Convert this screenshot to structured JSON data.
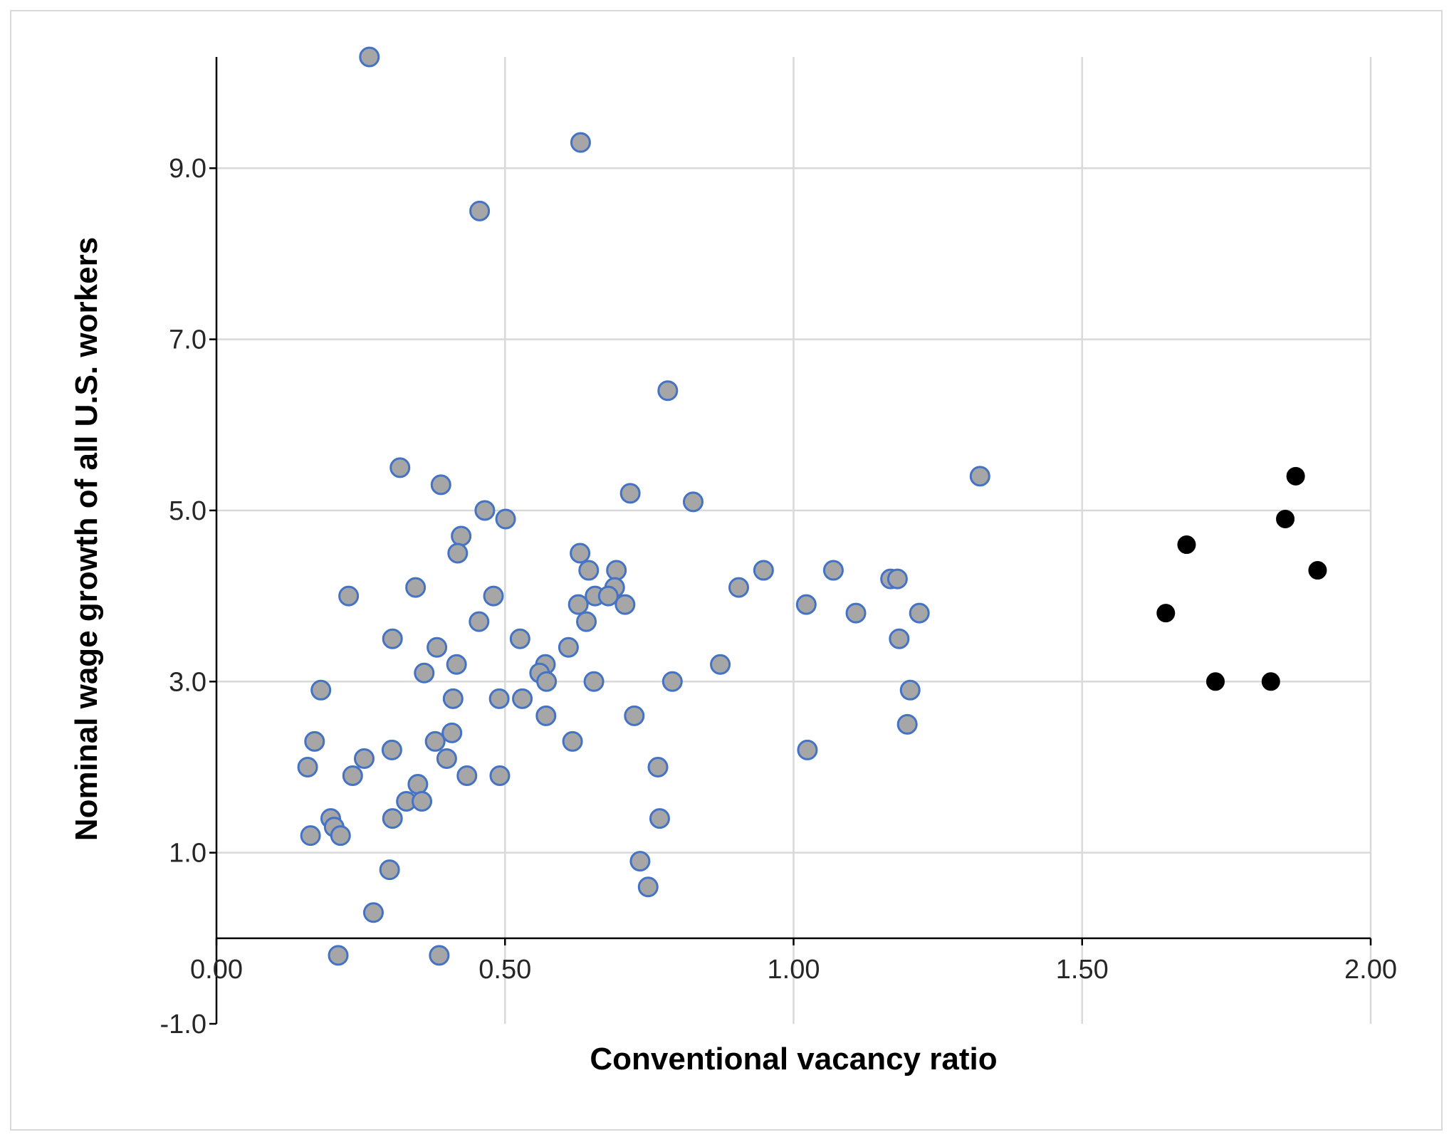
{
  "chart_data": {
    "type": "scatter",
    "title": "",
    "xlabel": "Conventional vacancy ratio",
    "ylabel": "Nominal wage growth of all U.S. workers",
    "xlim": [
      0,
      2
    ],
    "ylim": [
      -1,
      10.3
    ],
    "x_ticks": [
      0,
      0.5,
      1,
      1.5,
      2
    ],
    "x_tick_labels": [
      "0.00",
      "0.50",
      "1.00",
      "1.50",
      "2.00"
    ],
    "y_ticks": [
      -1,
      1,
      3,
      5,
      7,
      9
    ],
    "y_tick_labels": [
      "-1.0",
      "1.0",
      "3.0",
      "5.0",
      "7.0",
      "9.0"
    ],
    "x_axis_crosses_at": 0,
    "grid": true,
    "legend": "none",
    "colors": {
      "series_1_fill": "#a6a6a6",
      "series_1_edge": "#4472c4",
      "series_2_fill": "#000000",
      "grid": "#d9d9d9",
      "axis": "#000000"
    },
    "series": [
      {
        "points": [
          [
            0.265,
            10.3
          ],
          [
            0.631,
            9.3
          ],
          [
            0.456,
            8.5
          ],
          [
            0.782,
            6.4
          ],
          [
            0.318,
            5.5
          ],
          [
            0.389,
            5.3
          ],
          [
            1.323,
            5.4
          ],
          [
            0.717,
            5.2
          ],
          [
            0.826,
            5.1
          ],
          [
            0.465,
            5.0
          ],
          [
            0.501,
            4.9
          ],
          [
            0.424,
            4.7
          ],
          [
            0.418,
            4.5
          ],
          [
            0.63,
            4.5
          ],
          [
            0.645,
            4.3
          ],
          [
            0.693,
            4.3
          ],
          [
            0.948,
            4.3
          ],
          [
            1.069,
            4.3
          ],
          [
            0.345,
            4.1
          ],
          [
            0.69,
            4.1
          ],
          [
            0.905,
            4.1
          ],
          [
            1.168,
            4.2
          ],
          [
            1.18,
            4.2
          ],
          [
            0.229,
            4.0
          ],
          [
            0.48,
            4.0
          ],
          [
            0.656,
            4.0
          ],
          [
            0.679,
            4.0
          ],
          [
            0.627,
            3.9
          ],
          [
            0.708,
            3.9
          ],
          [
            1.022,
            3.9
          ],
          [
            0.455,
            3.7
          ],
          [
            0.641,
            3.7
          ],
          [
            1.108,
            3.8
          ],
          [
            1.218,
            3.8
          ],
          [
            0.305,
            3.5
          ],
          [
            0.526,
            3.5
          ],
          [
            1.183,
            3.5
          ],
          [
            0.382,
            3.4
          ],
          [
            0.61,
            3.4
          ],
          [
            0.416,
            3.2
          ],
          [
            0.57,
            3.2
          ],
          [
            0.873,
            3.2
          ],
          [
            0.36,
            3.1
          ],
          [
            0.56,
            3.1
          ],
          [
            0.572,
            3.0
          ],
          [
            0.654,
            3.0
          ],
          [
            0.79,
            3.0
          ],
          [
            0.181,
            2.9
          ],
          [
            1.202,
            2.9
          ],
          [
            0.41,
            2.8
          ],
          [
            0.49,
            2.8
          ],
          [
            0.53,
            2.8
          ],
          [
            0.571,
            2.6
          ],
          [
            0.724,
            2.6
          ],
          [
            1.197,
            2.5
          ],
          [
            0.408,
            2.4
          ],
          [
            0.17,
            2.3
          ],
          [
            0.379,
            2.3
          ],
          [
            0.617,
            2.3
          ],
          [
            0.304,
            2.2
          ],
          [
            1.024,
            2.2
          ],
          [
            0.256,
            2.1
          ],
          [
            0.399,
            2.1
          ],
          [
            0.158,
            2.0
          ],
          [
            0.765,
            2.0
          ],
          [
            0.236,
            1.9
          ],
          [
            0.434,
            1.9
          ],
          [
            0.491,
            1.9
          ],
          [
            0.349,
            1.8
          ],
          [
            0.329,
            1.6
          ],
          [
            0.356,
            1.6
          ],
          [
            0.198,
            1.4
          ],
          [
            0.305,
            1.4
          ],
          [
            0.768,
            1.4
          ],
          [
            0.204,
            1.3
          ],
          [
            0.163,
            1.2
          ],
          [
            0.215,
            1.2
          ],
          [
            0.734,
            0.9
          ],
          [
            0.3,
            0.8
          ],
          [
            0.748,
            0.6
          ],
          [
            0.272,
            0.3
          ],
          [
            0.211,
            -0.2
          ],
          [
            0.386,
            -0.2
          ]
        ]
      },
      {
        "points": [
          [
            1.645,
            3.8
          ],
          [
            1.681,
            4.6
          ],
          [
            1.731,
            3.0
          ],
          [
            1.827,
            3.0
          ],
          [
            1.852,
            4.9
          ],
          [
            1.87,
            5.4
          ],
          [
            1.908,
            4.3
          ]
        ]
      }
    ]
  }
}
